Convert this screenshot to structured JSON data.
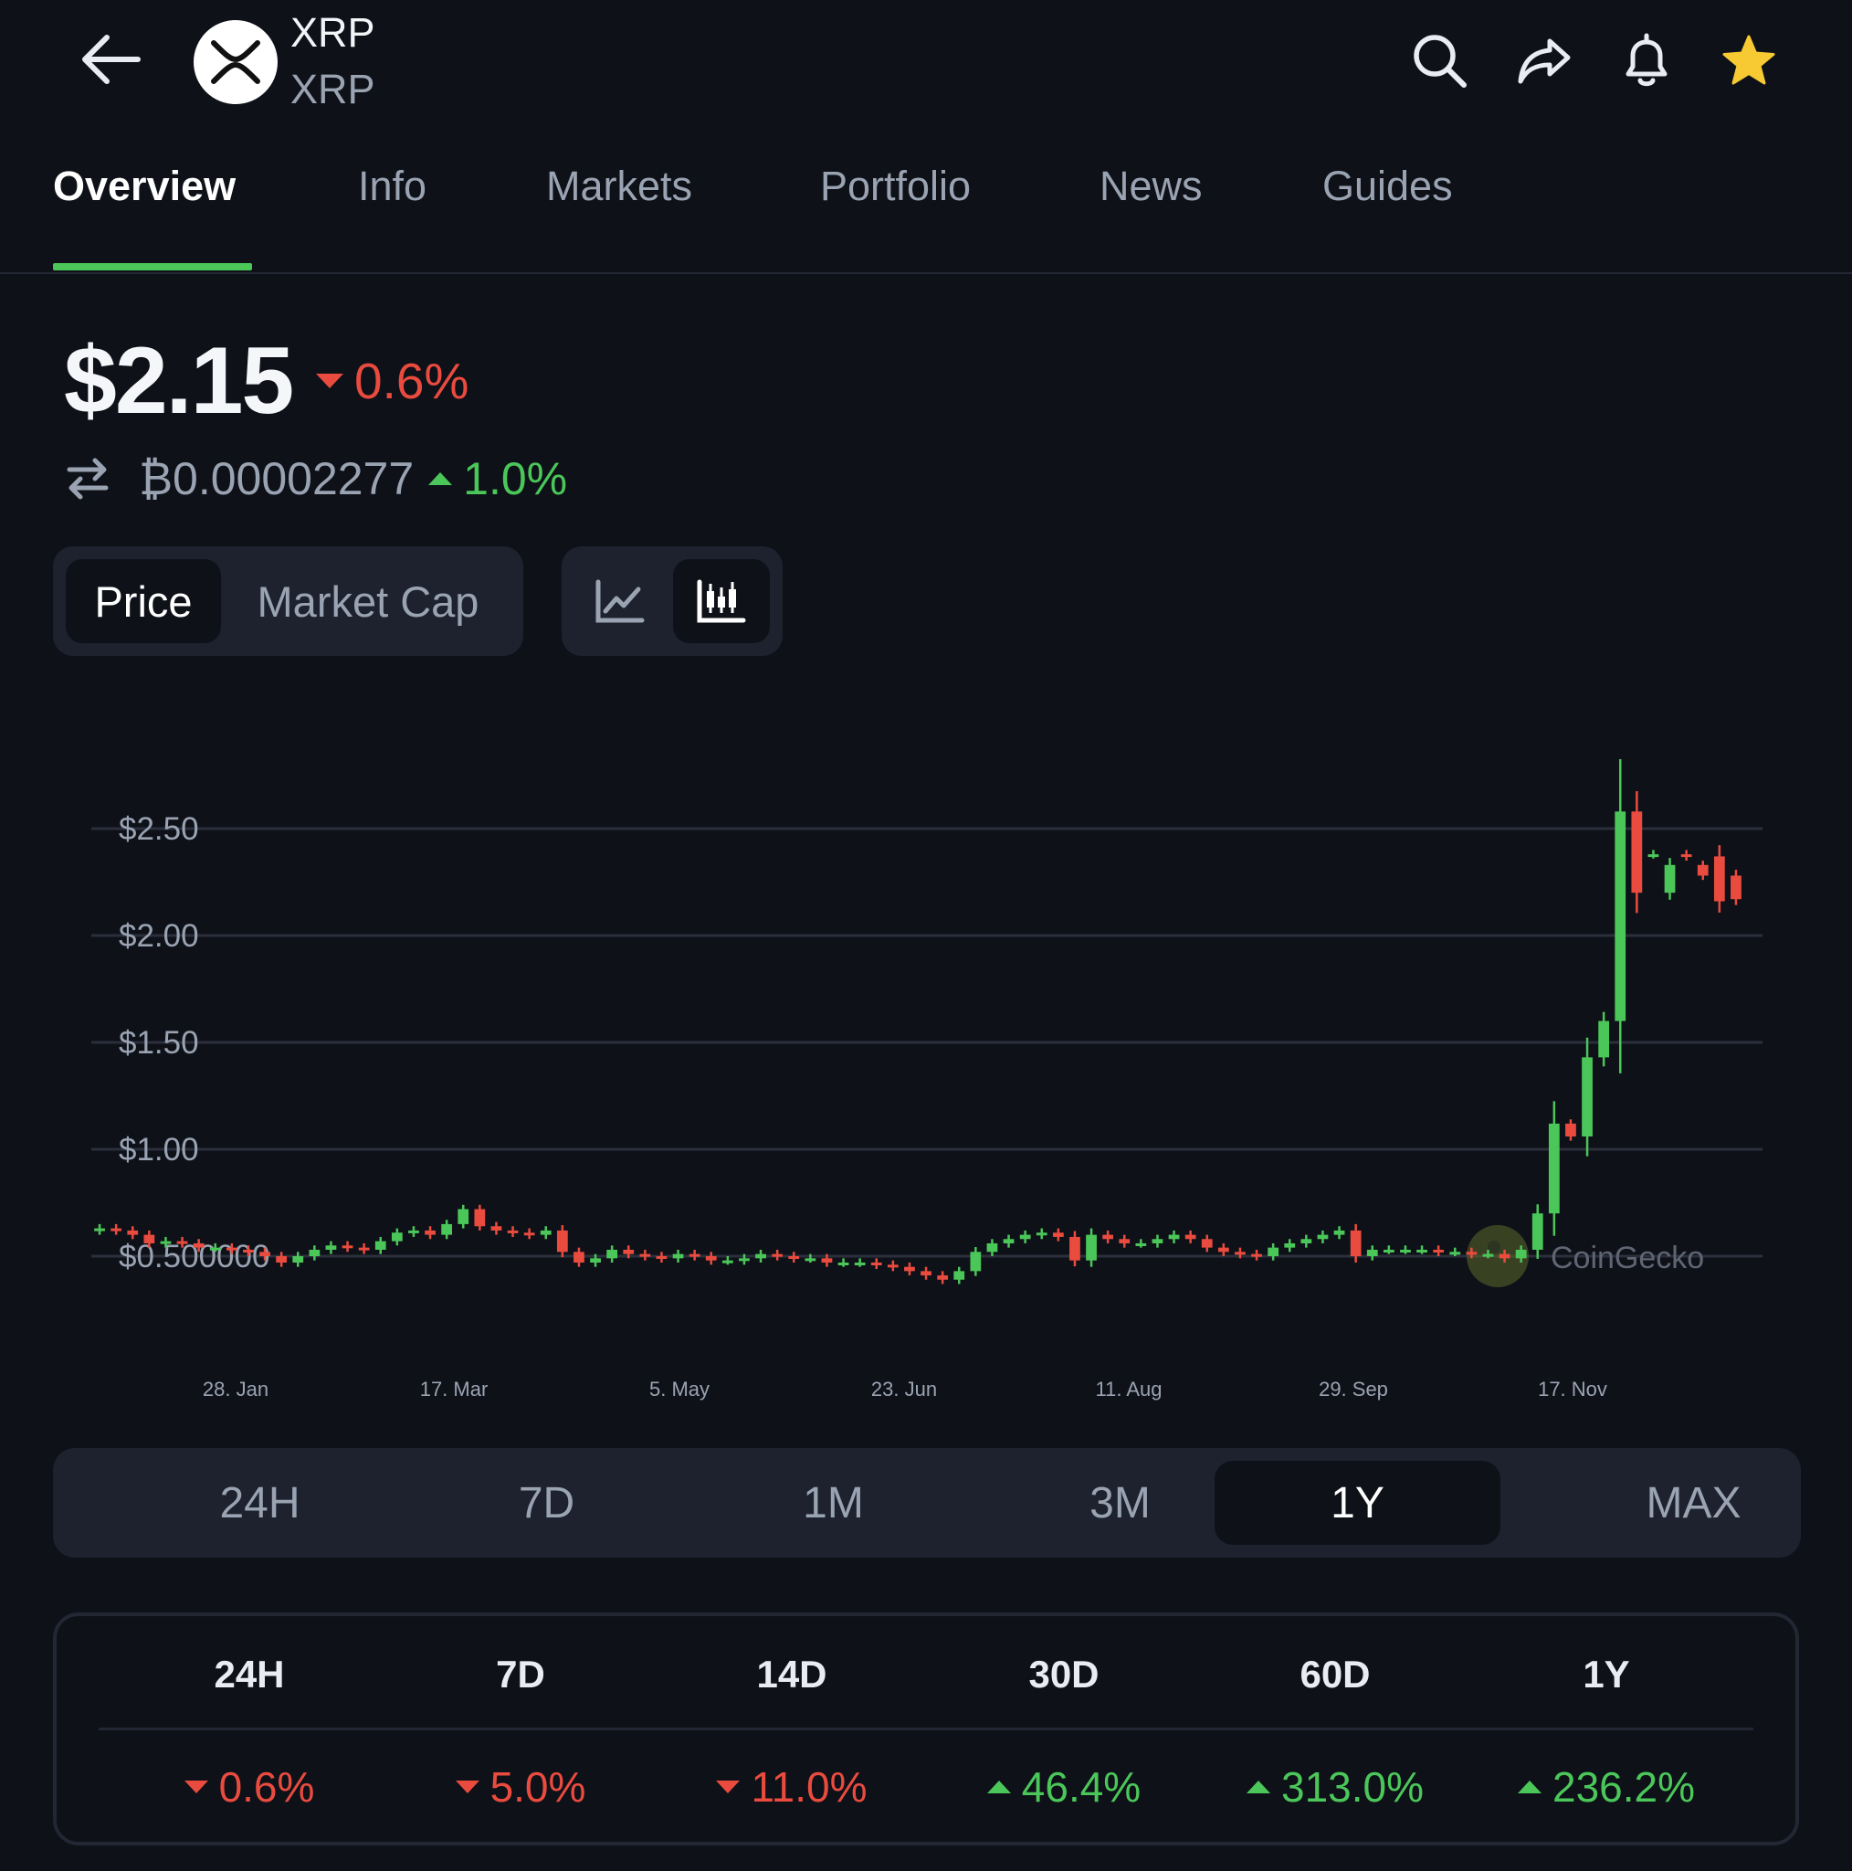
{
  "header": {
    "symbol": "XRP",
    "name": "XRP",
    "colors": {
      "accent_green": "#4bc75a",
      "red": "#ea4b3f",
      "star": "#f7c932",
      "background": "#0e1118"
    },
    "icons": [
      "back-arrow-icon",
      "xrp-logo-icon",
      "search-icon",
      "share-icon",
      "bell-icon",
      "star-icon"
    ]
  },
  "tabs": [
    {
      "label": "Overview",
      "active": true
    },
    {
      "label": "Info"
    },
    {
      "label": "Markets"
    },
    {
      "label": "Portfolio"
    },
    {
      "label": "News"
    },
    {
      "label": "Guides"
    }
  ],
  "price": {
    "usd": "$2.15",
    "usd_change": "0.6%",
    "usd_direction": "down",
    "btc": "₿0.00002277",
    "btc_change": "1.0%",
    "btc_direction": "up"
  },
  "metric_toggle": {
    "options": [
      "Price",
      "Market Cap"
    ],
    "selected": "Price"
  },
  "chart_type_toggle": {
    "options": [
      "line-chart-icon",
      "candlestick-icon"
    ],
    "selected": "candlestick-icon"
  },
  "chart_data": {
    "type": "candlestick",
    "title": "",
    "xlabel": "",
    "ylabel": "",
    "ylim": [
      0.28,
      2.8
    ],
    "y_ticks": [
      {
        "value": 0.5,
        "label": "$0.500000"
      },
      {
        "value": 1.0,
        "label": "$1.00"
      },
      {
        "value": 1.5,
        "label": "$1.50"
      },
      {
        "value": 2.0,
        "label": "$2.00"
      },
      {
        "value": 2.5,
        "label": "$2.50"
      }
    ],
    "x_ticks": [
      "28. Jan",
      "17. Mar",
      "5. May",
      "23. Jun",
      "11. Aug",
      "29. Sep",
      "17. Nov"
    ],
    "watermark": "CoinGecko",
    "grid": true,
    "candles_close": [
      0.63,
      0.62,
      0.6,
      0.56,
      0.57,
      0.56,
      0.54,
      0.54,
      0.53,
      0.52,
      0.5,
      0.47,
      0.5,
      0.53,
      0.55,
      0.54,
      0.53,
      0.57,
      0.61,
      0.62,
      0.6,
      0.65,
      0.72,
      0.64,
      0.62,
      0.61,
      0.6,
      0.62,
      0.52,
      0.47,
      0.49,
      0.53,
      0.51,
      0.5,
      0.49,
      0.51,
      0.5,
      0.48,
      0.48,
      0.49,
      0.51,
      0.5,
      0.49,
      0.49,
      0.47,
      0.47,
      0.47,
      0.46,
      0.45,
      0.43,
      0.41,
      0.39,
      0.43,
      0.52,
      0.56,
      0.58,
      0.6,
      0.61,
      0.59,
      0.48,
      0.6,
      0.58,
      0.56,
      0.56,
      0.58,
      0.6,
      0.58,
      0.54,
      0.52,
      0.51,
      0.5,
      0.54,
      0.56,
      0.58,
      0.6,
      0.62,
      0.5,
      0.53,
      0.53,
      0.53,
      0.53,
      0.52,
      0.52,
      0.51,
      0.51,
      0.49,
      0.53,
      0.7,
      1.12,
      1.06,
      1.43,
      1.6,
      2.58,
      2.2,
      2.38,
      2.33,
      2.37,
      2.28,
      2.16,
      2.17
    ],
    "candles_open": [
      0.62,
      0.63,
      0.62,
      0.6,
      0.56,
      0.57,
      0.56,
      0.54,
      0.54,
      0.53,
      0.52,
      0.5,
      0.47,
      0.5,
      0.53,
      0.55,
      0.54,
      0.53,
      0.57,
      0.61,
      0.62,
      0.6,
      0.65,
      0.72,
      0.64,
      0.62,
      0.61,
      0.6,
      0.62,
      0.52,
      0.47,
      0.49,
      0.53,
      0.51,
      0.5,
      0.49,
      0.51,
      0.5,
      0.48,
      0.48,
      0.49,
      0.51,
      0.5,
      0.49,
      0.49,
      0.47,
      0.47,
      0.47,
      0.46,
      0.45,
      0.43,
      0.41,
      0.39,
      0.43,
      0.52,
      0.56,
      0.58,
      0.6,
      0.61,
      0.59,
      0.48,
      0.6,
      0.58,
      0.56,
      0.56,
      0.58,
      0.6,
      0.58,
      0.54,
      0.52,
      0.51,
      0.5,
      0.54,
      0.56,
      0.58,
      0.6,
      0.62,
      0.5,
      0.53,
      0.53,
      0.53,
      0.53,
      0.52,
      0.52,
      0.51,
      0.51,
      0.49,
      0.53,
      0.7,
      1.12,
      1.06,
      1.43,
      1.6,
      2.58,
      2.38,
      2.2,
      2.38,
      2.33,
      2.37,
      2.28
    ]
  },
  "range_selector": {
    "options": [
      "24H",
      "7D",
      "1M",
      "3M",
      "1Y",
      "MAX"
    ],
    "selected": "1Y"
  },
  "performance": [
    {
      "period": "24H",
      "value": "0.6%",
      "direction": "down"
    },
    {
      "period": "7D",
      "value": "5.0%",
      "direction": "down"
    },
    {
      "period": "14D",
      "value": "11.0%",
      "direction": "down"
    },
    {
      "period": "30D",
      "value": "46.4%",
      "direction": "up"
    },
    {
      "period": "60D",
      "value": "313.0%",
      "direction": "up"
    },
    {
      "period": "1Y",
      "value": "236.2%",
      "direction": "up"
    }
  ]
}
